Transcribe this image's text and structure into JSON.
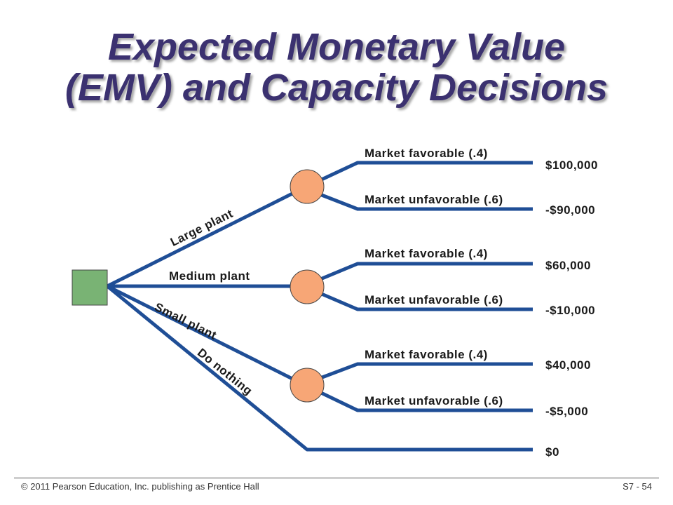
{
  "title": {
    "line1": "Expected Monetary Value",
    "line2": "(EMV) and Capacity Decisions"
  },
  "colors": {
    "line": "#1f4e96",
    "decision_fill": "#79b374",
    "chance_fill": "#f7a676",
    "title": "#3b3170"
  },
  "decisions": {
    "large": "Large plant",
    "medium": "Medium plant",
    "small": "Small plant",
    "none": "Do nothing"
  },
  "branches": [
    {
      "outcome": "Market favorable (.4)",
      "payoff": "$100,000"
    },
    {
      "outcome": "Market unfavorable (.6)",
      "payoff": "-$90,000"
    },
    {
      "outcome": "Market favorable (.4)",
      "payoff": "$60,000"
    },
    {
      "outcome": "Market unfavorable (.6)",
      "payoff": "-$10,000"
    },
    {
      "outcome": "Market favorable (.4)",
      "payoff": "$40,000"
    },
    {
      "outcome": "Market unfavorable (.6)",
      "payoff": "-$5,000"
    }
  ],
  "do_nothing_payoff": "$0",
  "footer": {
    "copyright": "© 2011 Pearson Education, Inc. publishing as Prentice Hall",
    "page": "S7 - 54"
  }
}
